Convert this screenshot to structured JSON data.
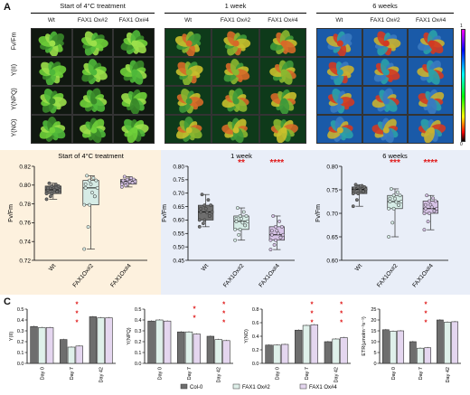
{
  "panel_a": {
    "letter": "A",
    "groups": [
      "Start of 4°C treatment",
      "1 week",
      "6 weeks"
    ],
    "columns": [
      "Wt",
      "FAX1 Ox#2",
      "FAX1 Ox#4"
    ],
    "rows": [
      "Fv/Fm",
      "Y(II)",
      "Y(NPQ)",
      "Y(NO)"
    ],
    "scale_top": "1",
    "scale_bottom": "0",
    "colors": {
      "background": "#0a0a0a",
      "leaf_high": "#55cc44",
      "leaf_mid": "#d8c832",
      "leaf_low": "#c84a22"
    }
  },
  "panel_b": {
    "letter": "B",
    "bg_colors": [
      "#fdf1de",
      "#e9eef8"
    ],
    "box_colors": [
      "#6e6e6e",
      "#d6ece6",
      "#d6c2e6"
    ],
    "star_color": "#e01818"
  },
  "panel_c": {
    "letter": "C",
    "bar_colors": [
      "#6e6e6e",
      "#dff0ea",
      "#e4d6ef"
    ],
    "legend": [
      "Col-0",
      "FAX1 Ox#2",
      "FAX1 Ox#4"
    ]
  },
  "chart_data": [
    {
      "type": "box",
      "title": "Start of 4°C treatment",
      "categories": [
        "Wt",
        "FAX1Ox#2",
        "FAX1Ox#4"
      ],
      "ylabel": "Fv/Fm",
      "ylim": [
        0.72,
        0.82
      ],
      "yticks": [
        "0.72",
        "0.74",
        "0.76",
        "0.78",
        "0.80",
        "0.82"
      ],
      "boxes": [
        {
          "min": 0.785,
          "q1": 0.791,
          "median": 0.795,
          "q3": 0.799,
          "max": 0.802
        },
        {
          "min": 0.732,
          "q1": 0.779,
          "median": 0.797,
          "q3": 0.805,
          "max": 0.81
        },
        {
          "min": 0.798,
          "q1": 0.801,
          "median": 0.804,
          "q3": 0.806,
          "max": 0.809
        }
      ],
      "significance": [
        "",
        "",
        ""
      ]
    },
    {
      "type": "box",
      "title": "1 week",
      "categories": [
        "Wt",
        "FAX1Ox#2",
        "FAX1Ox#4"
      ],
      "ylabel": "Fv/Fm",
      "ylim": [
        0.45,
        0.8
      ],
      "yticks": [
        "0.45",
        "0.50",
        "0.55",
        "0.60",
        "0.65",
        "0.70",
        "0.75",
        "0.80"
      ],
      "boxes": [
        {
          "min": 0.575,
          "q1": 0.6,
          "median": 0.63,
          "q3": 0.655,
          "max": 0.695
        },
        {
          "min": 0.525,
          "q1": 0.565,
          "median": 0.595,
          "q3": 0.615,
          "max": 0.645
        },
        {
          "min": 0.49,
          "q1": 0.525,
          "median": 0.545,
          "q3": 0.575,
          "max": 0.615
        }
      ],
      "significance": [
        "",
        "**",
        "****"
      ]
    },
    {
      "type": "box",
      "title": "6 weeks",
      "categories": [
        "Wt",
        "FAX1Ox#2",
        "FAX1Ox#4"
      ],
      "ylabel": "Fv/Fm",
      "ylim": [
        0.6,
        0.8
      ],
      "yticks": [
        "0.60",
        "0.65",
        "0.70",
        "0.75",
        "0.80"
      ],
      "boxes": [
        {
          "min": 0.715,
          "q1": 0.742,
          "median": 0.751,
          "q3": 0.756,
          "max": 0.761
        },
        {
          "min": 0.65,
          "q1": 0.71,
          "median": 0.725,
          "q3": 0.738,
          "max": 0.752
        },
        {
          "min": 0.665,
          "q1": 0.7,
          "median": 0.71,
          "q3": 0.726,
          "max": 0.738
        }
      ],
      "significance": [
        "",
        "***",
        "****"
      ]
    },
    {
      "type": "bar",
      "ylabel": "Y(II)",
      "categories": [
        "Day 0",
        "Day 7",
        "Day 42"
      ],
      "ylim": [
        0,
        0.5
      ],
      "yticks": [
        "0.0",
        "0.1",
        "0.2",
        "0.3",
        "0.4",
        "0.5"
      ],
      "series": [
        {
          "name": "Col-0",
          "values": [
            0.34,
            0.22,
            0.43
          ]
        },
        {
          "name": "FAX1 Ox#2",
          "values": [
            0.33,
            0.15,
            0.42
          ]
        },
        {
          "name": "FAX1 Ox#4",
          "values": [
            0.33,
            0.16,
            0.42
          ]
        }
      ],
      "significance": [
        "",
        "****",
        ""
      ]
    },
    {
      "type": "bar",
      "ylabel": "Y(NPQ)",
      "categories": [
        "Day 0",
        "Day 7",
        "Day 42"
      ],
      "ylim": [
        0,
        0.5
      ],
      "yticks": [
        "0.0",
        "0.1",
        "0.2",
        "0.3",
        "0.4",
        "0.5"
      ],
      "series": [
        {
          "name": "Col-0",
          "values": [
            0.39,
            0.29,
            0.25
          ]
        },
        {
          "name": "FAX1 Ox#2",
          "values": [
            0.4,
            0.29,
            0.22
          ]
        },
        {
          "name": "FAX1 Ox#4",
          "values": [
            0.39,
            0.27,
            0.21
          ]
        }
      ],
      "significance": [
        "",
        "**",
        "****"
      ]
    },
    {
      "type": "bar",
      "ylabel": "Y(NO)",
      "categories": [
        "Day 0",
        "Day 7",
        "Day 42"
      ],
      "ylim": [
        0,
        0.8
      ],
      "yticks": [
        "0.0",
        "0.2",
        "0.4",
        "0.6",
        "0.8"
      ],
      "series": [
        {
          "name": "Col-0",
          "values": [
            0.27,
            0.49,
            0.32
          ]
        },
        {
          "name": "FAX1 Ox#2",
          "values": [
            0.27,
            0.56,
            0.36
          ]
        },
        {
          "name": "FAX1 Ox#4",
          "values": [
            0.28,
            0.57,
            0.38
          ]
        }
      ],
      "significance": [
        "",
        "****",
        "****"
      ]
    },
    {
      "type": "bar",
      "ylabel": "ETR(µmolm⁻²s⁻¹)",
      "categories": [
        "Day 0",
        "Day 7",
        "Day 42"
      ],
      "ylim": [
        0,
        25
      ],
      "yticks": [
        "0",
        "5",
        "10",
        "15",
        "20",
        "25"
      ],
      "series": [
        {
          "name": "Col-0",
          "values": [
            15.5,
            10.0,
            20.0
          ]
        },
        {
          "name": "FAX1 Ox#2",
          "values": [
            14.8,
            7.0,
            19.0
          ]
        },
        {
          "name": "FAX1 Ox#4",
          "values": [
            15.0,
            7.2,
            19.2
          ]
        }
      ],
      "significance": [
        "",
        "****",
        ""
      ]
    }
  ]
}
